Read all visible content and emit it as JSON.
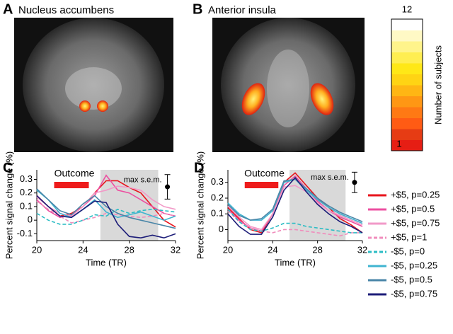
{
  "images": [
    {
      "letter": "A",
      "title": "Nucleus accumbens"
    },
    {
      "letter": "B",
      "title": "Anterior insula"
    }
  ],
  "colorbar": {
    "label": "Number of subjects",
    "max": 12,
    "min": 1
  },
  "chart_data": [
    {
      "type": "line",
      "label": "C",
      "xlabel": "Time (TR)",
      "ylabel": "Percent signal change (%)",
      "x": [
        20,
        21,
        22,
        23,
        24,
        25,
        26,
        27,
        28,
        29,
        30,
        31,
        32
      ],
      "xlim": [
        20,
        32
      ],
      "xticks": [
        20,
        24,
        28,
        32
      ],
      "ylim": [
        -0.15,
        0.37
      ],
      "yticks": [
        -0.1,
        0,
        0.1,
        0.2,
        0.3
      ],
      "shade": [
        25.5,
        30.5
      ],
      "outcome": {
        "label": "Outcome",
        "x": [
          21.5,
          24.5
        ],
        "color": "#ee1c1c"
      },
      "sem": {
        "label": "max s.e.m.",
        "x": 31.3,
        "y": 0.245,
        "error": 0.09
      },
      "series": [
        {
          "color": "#e8141c",
          "dash": false,
          "values": [
            0.18,
            0.1,
            0.03,
            0.05,
            0.1,
            0.2,
            0.29,
            0.29,
            0.24,
            0.2,
            0.1,
            0.0,
            -0.05
          ]
        },
        {
          "color": "#ec4fa0",
          "dash": false,
          "values": [
            0.15,
            0.07,
            0.02,
            0.04,
            0.1,
            0.18,
            0.33,
            0.22,
            0.2,
            0.15,
            0.1,
            0.05,
            0.03
          ]
        },
        {
          "color": "#f29ac8",
          "dash": false,
          "values": [
            0.17,
            0.1,
            0.05,
            0.03,
            0.1,
            0.2,
            0.22,
            0.25,
            0.24,
            0.22,
            0.15,
            0.1,
            0.08
          ]
        },
        {
          "color": "#f08cbc",
          "dash": true,
          "values": [
            0.14,
            0.08,
            0.03,
            -0.02,
            0.0,
            0.02,
            0.05,
            0.04,
            0.03,
            0.02,
            0.03,
            0.05,
            0.03
          ]
        },
        {
          "color": "#2bbcc4",
          "dash": true,
          "values": [
            0.05,
            0.0,
            -0.03,
            -0.03,
            0.0,
            0.04,
            0.03,
            0.08,
            0.05,
            0.07,
            0.08,
            0.07,
            0.06
          ]
        },
        {
          "color": "#40b4d0",
          "dash": false,
          "values": [
            0.22,
            0.15,
            0.05,
            0.02,
            0.08,
            0.15,
            0.06,
            0.02,
            0.04,
            0.06,
            0.03,
            0.0,
            0.03
          ]
        },
        {
          "color": "#4a86a8",
          "dash": false,
          "values": [
            0.23,
            0.15,
            0.07,
            0.04,
            0.12,
            0.18,
            0.1,
            0.05,
            0.02,
            0.0,
            -0.02,
            -0.04,
            -0.06
          ]
        },
        {
          "color": "#1c1c78",
          "dash": false,
          "values": [
            0.18,
            0.1,
            0.03,
            0.02,
            0.08,
            0.14,
            0.13,
            -0.03,
            -0.12,
            -0.13,
            -0.11,
            -0.13,
            -0.1
          ]
        }
      ]
    },
    {
      "type": "line",
      "label": "D",
      "xlabel": "Time (TR)",
      "ylabel": "Percent signal change (%)",
      "x": [
        20,
        21,
        22,
        23,
        24,
        25,
        26,
        27,
        28,
        29,
        30,
        31,
        32
      ],
      "xlim": [
        20,
        32
      ],
      "xticks": [
        20,
        24,
        28,
        32
      ],
      "ylim": [
        -0.07,
        0.38
      ],
      "yticks": [
        0,
        0.1,
        0.2,
        0.3
      ],
      "shade": [
        25.5,
        30.5
      ],
      "outcome": {
        "label": "Outcome",
        "x": [
          21.5,
          24.5
        ],
        "color": "#ee1c1c"
      },
      "sem": {
        "label": "max s.e.m.",
        "x": 31.3,
        "y": 0.3,
        "error": 0.065
      },
      "series": [
        {
          "name": "+$5, p=0.25",
          "color": "#e8141c",
          "dash": false,
          "values": [
            0.14,
            0.07,
            0.0,
            -0.02,
            0.1,
            0.3,
            0.36,
            0.28,
            0.2,
            0.14,
            0.07,
            0.03,
            -0.02
          ]
        },
        {
          "name": "+$5, p=0.5",
          "color": "#ec4fa0",
          "dash": false,
          "values": [
            0.13,
            0.06,
            0.01,
            -0.01,
            0.1,
            0.28,
            0.34,
            0.26,
            0.18,
            0.12,
            0.08,
            0.05,
            0.02
          ]
        },
        {
          "name": "+$5, p=0.75",
          "color": "#f29ac8",
          "dash": false,
          "values": [
            0.15,
            0.08,
            0.02,
            0.0,
            0.1,
            0.27,
            0.28,
            0.24,
            0.17,
            0.12,
            0.09,
            0.06,
            0.03
          ]
        },
        {
          "name": "+$5, p=1",
          "color": "#f08cbc",
          "dash": true,
          "values": [
            0.12,
            0.05,
            0.01,
            -0.01,
            -0.02,
            0.0,
            0.0,
            -0.01,
            -0.02,
            -0.03,
            -0.04,
            -0.02,
            -0.02
          ]
        },
        {
          "name": "-$5, p=0",
          "color": "#2bbcc4",
          "dash": true,
          "values": [
            0.13,
            0.05,
            0.0,
            -0.01,
            0.01,
            0.04,
            0.04,
            0.02,
            0.01,
            0.0,
            -0.01,
            -0.02,
            -0.02
          ]
        },
        {
          "name": "-$5, p=0.25",
          "color": "#40b4d0",
          "dash": false,
          "values": [
            0.17,
            0.1,
            0.06,
            0.06,
            0.12,
            0.3,
            0.32,
            0.25,
            0.19,
            0.14,
            0.1,
            0.07,
            0.04
          ]
        },
        {
          "name": "-$5, p=0.5",
          "color": "#4a86a8",
          "dash": false,
          "values": [
            0.16,
            0.09,
            0.06,
            0.07,
            0.13,
            0.31,
            0.32,
            0.26,
            0.2,
            0.15,
            0.11,
            0.08,
            0.05
          ]
        },
        {
          "name": "-$5, p=0.75",
          "color": "#1c1c78",
          "dash": false,
          "values": [
            0.1,
            0.02,
            -0.03,
            -0.03,
            0.08,
            0.25,
            0.33,
            0.24,
            0.16,
            0.1,
            0.05,
            0.02,
            -0.02
          ]
        }
      ]
    }
  ]
}
